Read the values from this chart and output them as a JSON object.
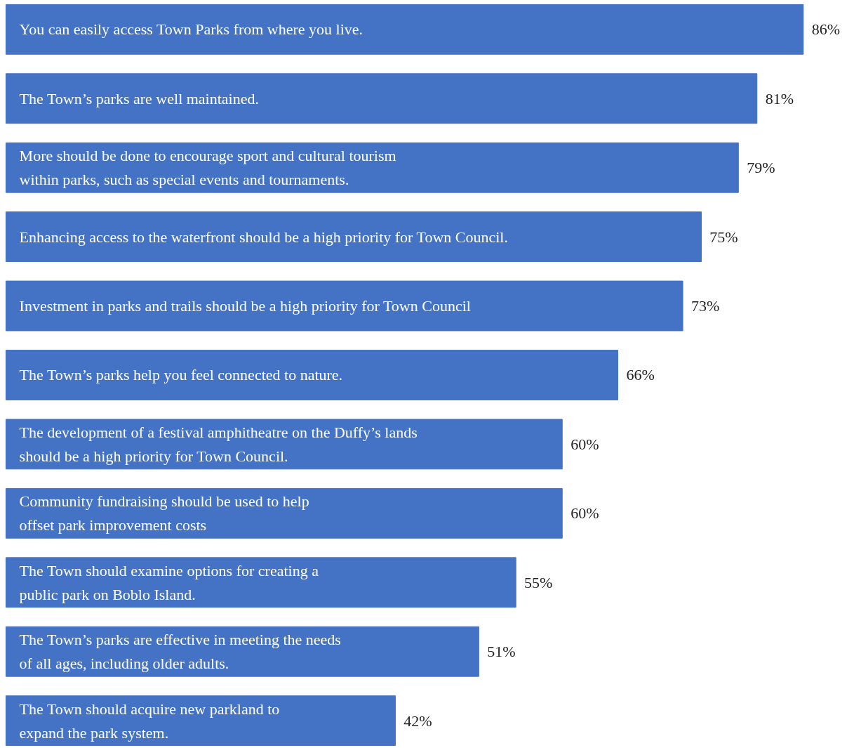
{
  "chart_data": {
    "type": "bar",
    "orientation": "horizontal",
    "categories": [
      "You can easily access Town Parks from where you live.",
      "The Town’s parks are well maintained.",
      "More should be done to encourage sport and cultural tourism\nwithin parks, such as special events and tournaments.",
      "Enhancing access to the waterfront should be a high priority for Town Council.",
      "Investment in parks and trails should be a high priority for Town Council",
      "The Town’s parks help you feel connected to nature.",
      "The development of a festival amphitheatre on the Duffy’s lands\nshould be a high priority for Town Council.",
      "Community fundraising should be used to help\noffset park improvement costs",
      "The Town should examine options for creating a\npublic park on Boblo Island.",
      "The Town’s parks are effective in meeting the needs\nof all ages, including older adults.",
      "The Town should acquire new parkland to\nexpand the park system."
    ],
    "values": [
      86,
      81,
      79,
      75,
      73,
      66,
      60,
      60,
      55,
      51,
      42
    ],
    "value_labels": [
      "86%",
      "81%",
      "79%",
      "75%",
      "73%",
      "66%",
      "60%",
      "60%",
      "55%",
      "51%",
      "42%"
    ],
    "color": "#4472c4"
  }
}
